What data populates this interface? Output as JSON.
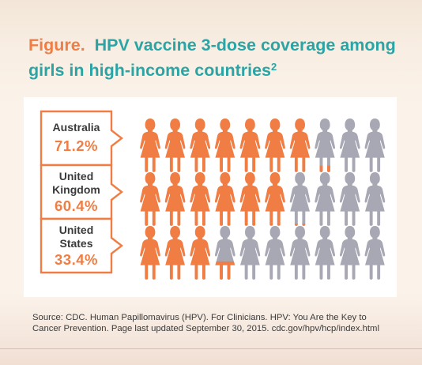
{
  "figure": {
    "label": "Figure.",
    "title": "HPV vaccine 3-dose coverage among girls in high-income countries",
    "superscript": "2"
  },
  "source": "Source: CDC. Human Papillomavirus (HPV). For Clinicians. HPV: You Are the Key to Cancer Prevention. Page last updated September 30, 2015. cdc.gov/hpv/hcp/index.html",
  "colors": {
    "covered": "#f07d44",
    "uncovered": "#a7a8b3",
    "label_value": "#f07d44",
    "title": "#2aa5a6",
    "border": "#f07d44"
  },
  "chart_data": {
    "type": "pictograph",
    "icons_per_row": 10,
    "unit": "%",
    "rows": [
      {
        "name_lines": [
          "Australia"
        ],
        "value_text": "71.2%",
        "value": 71.2
      },
      {
        "name_lines": [
          "United",
          "Kingdom"
        ],
        "value_text": "60.4%",
        "value": 60.4
      },
      {
        "name_lines": [
          "United",
          "States"
        ],
        "value_text": "33.4%",
        "value": 33.4
      }
    ]
  }
}
